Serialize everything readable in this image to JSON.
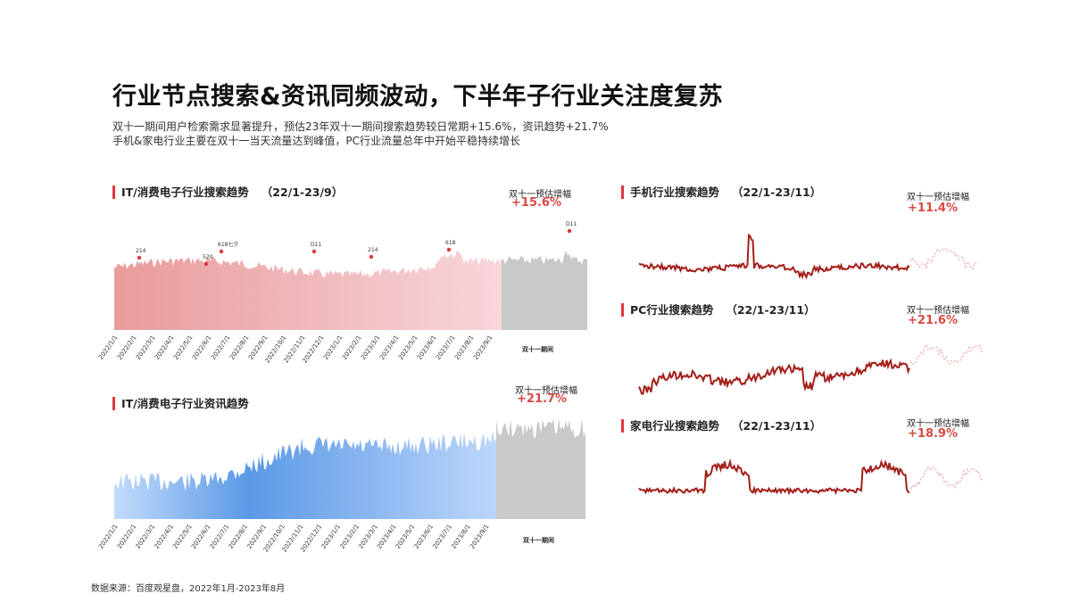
{
  "page": {
    "title": "行业节点搜索&资讯同频波动，下半年子行业关注度复苏",
    "subtitle_lines": [
      "双十一期间用户检索需求显著提升，预估23年双十一期间搜索趋势较日常期+15.6%，资讯趋势+21.7%",
      "手机&家电行业主要在双十一当天流量达到峰值，PC行业流量总年中开始平稳持续增长"
    ],
    "source": "数据来源：百度观星盘，2022年1月-2023年8月"
  },
  "chart_data": [
    {
      "id": "it-search",
      "type": "area",
      "title": "IT/消费电子行业搜索趋势",
      "date_range": "（22/1-23/9）",
      "growth_label": "双十一预估增幅",
      "growth_value": "+15.6%",
      "period_label": "双十一期间",
      "colors": {
        "historical": "#eeaaaa",
        "forecast": "#c9c9c9",
        "marker": "#e0363c"
      },
      "x_ticks": [
        "2022/1/1",
        "2022/2/1",
        "2022/3/1",
        "2022/4/1",
        "2022/5/1",
        "2022/6/1",
        "2022/7/1",
        "2022/8/1",
        "2022/9/1",
        "2022/10/1",
        "2022/11/1",
        "2022/12/1",
        "2023/1/1",
        "2023/2/1",
        "2023/3/1",
        "2023/4/1",
        "2023/5/1",
        "2023/6/1",
        "2023/7/1",
        "2023/8/1",
        "2023/9/1"
      ],
      "annotations": [
        {
          "label": "214",
          "x": "2022/2/14"
        },
        {
          "label": "520",
          "x": "2022/5/20"
        },
        {
          "label": "618七夕",
          "x": "2022/6/18"
        },
        {
          "label": "D11",
          "x": "2022/11/11"
        },
        {
          "label": "214",
          "x": "2023/2/14"
        },
        {
          "label": "618",
          "x": "2023/6/18"
        },
        {
          "label": "D11",
          "x": "2023/11/11"
        }
      ]
    },
    {
      "id": "it-news",
      "type": "area",
      "title": "IT/消费电子行业资讯趋势",
      "growth_label": "双十一预估增幅",
      "growth_value": "+21.7%",
      "period_label": "双十一期间",
      "colors": {
        "historical": "#7fb0ef",
        "forecast": "#c9c9c9"
      },
      "x_ticks": [
        "2022/1/1",
        "2022/2/1",
        "2022/3/1",
        "2022/4/1",
        "2022/5/1",
        "2022/6/1",
        "2022/7/1",
        "2022/8/1",
        "2022/9/1",
        "2022/10/1",
        "2022/11/1",
        "2022/12/1",
        "2023/1/1",
        "2023/2/1",
        "2023/3/1",
        "2023/4/1",
        "2023/5/1",
        "2023/6/1",
        "2023/7/1",
        "2023/8/1",
        "2023/9/1"
      ]
    },
    {
      "id": "phone-search",
      "type": "line",
      "title": "手机行业搜索趋势",
      "date_range": "（22/1-23/11）",
      "growth_label": "双十一预估增幅",
      "growth_value": "+11.4%",
      "colors": {
        "historical": "#a31f1a",
        "forecast": "#f0b8b8"
      }
    },
    {
      "id": "pc-search",
      "type": "line",
      "title": "PC行业搜索趋势",
      "date_range": "（22/1-23/11）",
      "growth_label": "双十一预估增幅",
      "growth_value": "+21.6%",
      "colors": {
        "historical": "#a31f1a",
        "forecast": "#f0b8b8"
      }
    },
    {
      "id": "appliance-search",
      "type": "line",
      "title": "家电行业搜索趋势",
      "date_range": "（22/1-23/11）",
      "growth_label": "双十一预估增幅",
      "growth_value": "+18.9%",
      "colors": {
        "historical": "#a31f1a",
        "forecast": "#f0b8b8"
      }
    }
  ]
}
